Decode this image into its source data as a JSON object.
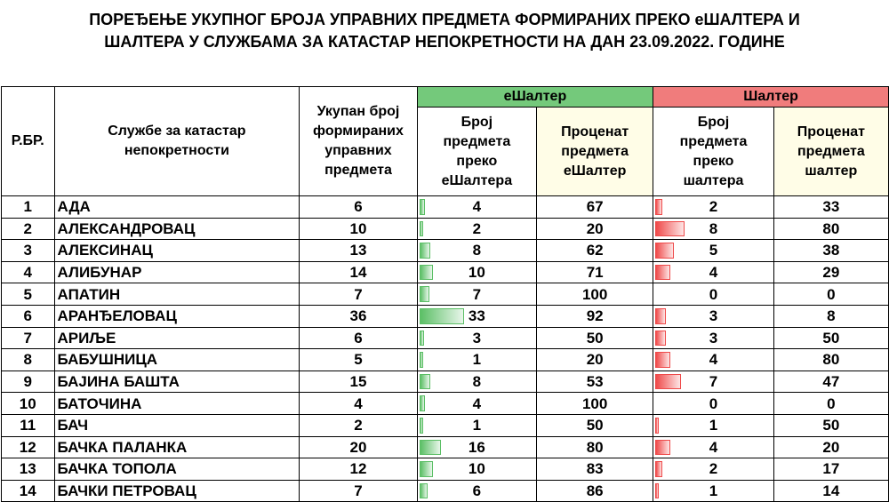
{
  "title_line1": "ПОРЕЂЕЊЕ УКУПНОГ БРОЈА УПРАВНИХ ПРЕДМЕТА ФОРМИРАНИХ ПРЕКО еШАЛТЕРА И",
  "title_line2": "ШАЛТЕРА У СЛУЖБАМА ЗА КАТАСТАР НЕПОКРЕТНОСТИ НА ДАН 23.09.2022. ГОДИНЕ",
  "headers": {
    "rbr": "Р.БР.",
    "office": "Службе за катастар непокретности",
    "total": "Укупан број формираних управних предмета",
    "group_e": "еШалтер",
    "group_s": "Шалтер",
    "e_count": "Број предмета преко еШалтера",
    "e_pct": "Проценат предмета еШалтер",
    "s_count": "Број предмета преко шалтера",
    "s_pct": "Проценат предмета шалтер"
  },
  "colors": {
    "green": "#74c97b",
    "red": "#f07c7c",
    "yellow": "#fffde7"
  },
  "rows": [
    {
      "no": "1",
      "name": "АДА",
      "total": "6",
      "e": "4",
      "ep": "67",
      "s": "2",
      "sp": "33"
    },
    {
      "no": "2",
      "name": "АЛЕКСАНДРОВАЦ",
      "total": "10",
      "e": "2",
      "ep": "20",
      "s": "8",
      "sp": "80"
    },
    {
      "no": "3",
      "name": "АЛЕКСИНАЦ",
      "total": "13",
      "e": "8",
      "ep": "62",
      "s": "5",
      "sp": "38"
    },
    {
      "no": "4",
      "name": "АЛИБУНАР",
      "total": "14",
      "e": "10",
      "ep": "71",
      "s": "4",
      "sp": "29"
    },
    {
      "no": "5",
      "name": "АПАТИН",
      "total": "7",
      "e": "7",
      "ep": "100",
      "s": "0",
      "sp": "0"
    },
    {
      "no": "6",
      "name": "АРАНЂЕЛОВАЦ",
      "total": "36",
      "e": "33",
      "ep": "92",
      "s": "3",
      "sp": "8"
    },
    {
      "no": "7",
      "name": "АРИЉЕ",
      "total": "6",
      "e": "3",
      "ep": "50",
      "s": "3",
      "sp": "50"
    },
    {
      "no": "8",
      "name": "БАБУШНИЦА",
      "total": "5",
      "e": "1",
      "ep": "20",
      "s": "4",
      "sp": "80"
    },
    {
      "no": "9",
      "name": "БАЈИНА БАШТА",
      "total": "15",
      "e": "8",
      "ep": "53",
      "s": "7",
      "sp": "47"
    },
    {
      "no": "10",
      "name": "БАТОЧИНА",
      "total": "4",
      "e": "4",
      "ep": "100",
      "s": "0",
      "sp": "0"
    },
    {
      "no": "11",
      "name": "БАЧ",
      "total": "2",
      "e": "1",
      "ep": "50",
      "s": "1",
      "sp": "50"
    },
    {
      "no": "12",
      "name": "БАЧКА ПАЛАНКА",
      "total": "20",
      "e": "16",
      "ep": "80",
      "s": "4",
      "sp": "20"
    },
    {
      "no": "13",
      "name": "БАЧКА ТОПОЛА",
      "total": "12",
      "e": "10",
      "ep": "83",
      "s": "2",
      "sp": "17"
    },
    {
      "no": "14",
      "name": "БАЧКИ ПЕТРОВАЦ",
      "total": "7",
      "e": "6",
      "ep": "86",
      "s": "1",
      "sp": "14"
    }
  ]
}
